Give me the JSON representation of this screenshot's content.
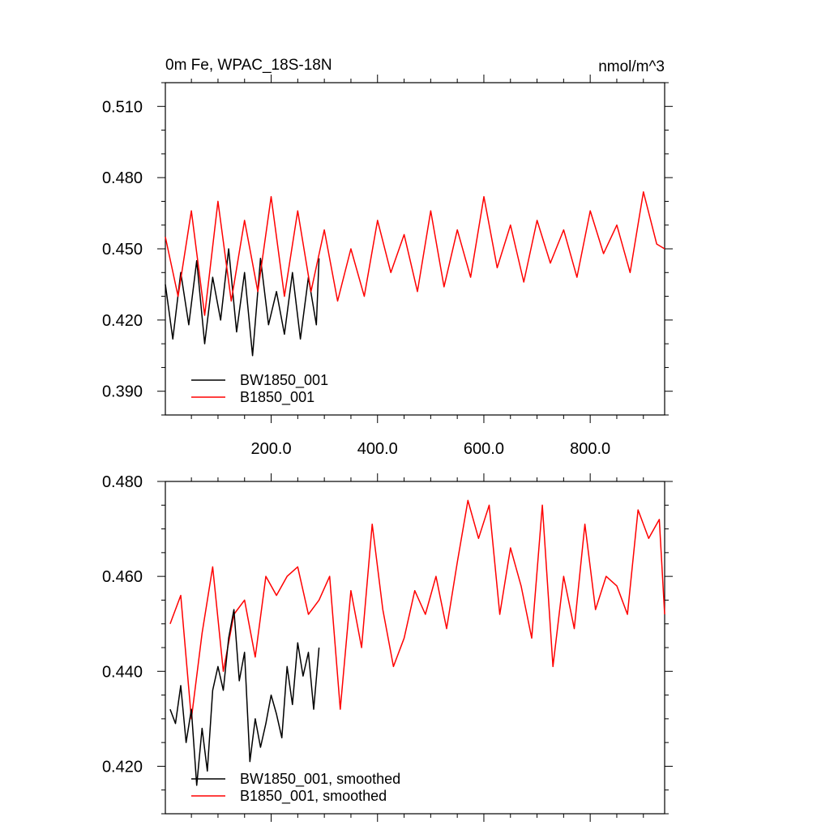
{
  "chart_data": [
    {
      "type": "line",
      "title": "0m Fe, WPAC_18S-18N",
      "units": "nmol/m^3",
      "xlim": [
        1,
        940
      ],
      "ylim": [
        0.38,
        0.52
      ],
      "x_tick_labels": [
        "200.0",
        "400.0",
        "600.0",
        "800.0"
      ],
      "y_tick_labels": [
        "0.390",
        "0.420",
        "0.450",
        "0.480",
        "0.510"
      ],
      "legend_position": "bottom-left",
      "series": [
        {
          "name": "BW1850_001",
          "color": "#000000",
          "x": [
            1,
            15,
            30,
            45,
            60,
            75,
            90,
            105,
            120,
            135,
            150,
            165,
            180,
            195,
            210,
            225,
            240,
            255,
            270,
            285,
            290
          ],
          "y": [
            0.435,
            0.412,
            0.44,
            0.418,
            0.445,
            0.41,
            0.438,
            0.42,
            0.45,
            0.415,
            0.44,
            0.405,
            0.446,
            0.418,
            0.432,
            0.414,
            0.44,
            0.412,
            0.438,
            0.418,
            0.446
          ]
        },
        {
          "name": "B1850_001",
          "color": "#ff0000",
          "x": [
            1,
            25,
            50,
            75,
            100,
            125,
            150,
            175,
            200,
            225,
            250,
            275,
            300,
            325,
            350,
            375,
            400,
            425,
            450,
            475,
            500,
            525,
            550,
            575,
            600,
            625,
            650,
            675,
            700,
            725,
            750,
            775,
            800,
            825,
            850,
            875,
            900,
            925,
            940
          ],
          "y": [
            0.455,
            0.43,
            0.466,
            0.422,
            0.47,
            0.428,
            0.462,
            0.432,
            0.472,
            0.43,
            0.466,
            0.432,
            0.458,
            0.428,
            0.45,
            0.43,
            0.462,
            0.44,
            0.456,
            0.432,
            0.466,
            0.434,
            0.458,
            0.438,
            0.472,
            0.442,
            0.46,
            0.436,
            0.462,
            0.444,
            0.458,
            0.438,
            0.466,
            0.448,
            0.46,
            0.44,
            0.474,
            0.452,
            0.45
          ]
        }
      ]
    },
    {
      "type": "line",
      "xlim": [
        1,
        940
      ],
      "ylim": [
        0.41,
        0.48
      ],
      "y_tick_labels": [
        "0.420",
        "0.440",
        "0.460",
        "0.480"
      ],
      "legend_position": "bottom-left",
      "series": [
        {
          "name": "BW1850_001, smoothed",
          "color": "#000000",
          "x": [
            10,
            20,
            30,
            40,
            50,
            60,
            70,
            80,
            90,
            100,
            110,
            120,
            130,
            140,
            150,
            160,
            170,
            180,
            190,
            200,
            210,
            220,
            230,
            240,
            250,
            260,
            270,
            280,
            290
          ],
          "y": [
            0.432,
            0.429,
            0.437,
            0.425,
            0.432,
            0.416,
            0.428,
            0.419,
            0.436,
            0.441,
            0.436,
            0.447,
            0.453,
            0.438,
            0.444,
            0.421,
            0.43,
            0.424,
            0.429,
            0.435,
            0.431,
            0.426,
            0.441,
            0.433,
            0.446,
            0.439,
            0.444,
            0.432,
            0.445
          ]
        },
        {
          "name": "B1850_001, smoothed",
          "color": "#ff0000",
          "x": [
            10,
            30,
            50,
            70,
            90,
            110,
            130,
            150,
            170,
            190,
            210,
            230,
            250,
            270,
            290,
            310,
            330,
            350,
            370,
            390,
            410,
            430,
            450,
            470,
            490,
            510,
            530,
            550,
            570,
            590,
            610,
            630,
            650,
            670,
            690,
            710,
            730,
            750,
            770,
            790,
            810,
            830,
            850,
            870,
            890,
            910,
            930,
            940
          ],
          "y": [
            0.45,
            0.456,
            0.43,
            0.448,
            0.462,
            0.44,
            0.452,
            0.455,
            0.443,
            0.46,
            0.456,
            0.46,
            0.462,
            0.452,
            0.455,
            0.46,
            0.432,
            0.457,
            0.445,
            0.471,
            0.453,
            0.441,
            0.447,
            0.457,
            0.452,
            0.46,
            0.449,
            0.463,
            0.476,
            0.468,
            0.475,
            0.452,
            0.466,
            0.458,
            0.447,
            0.475,
            0.441,
            0.46,
            0.449,
            0.471,
            0.453,
            0.46,
            0.458,
            0.452,
            0.474,
            0.468,
            0.472,
            0.452
          ]
        }
      ]
    }
  ]
}
